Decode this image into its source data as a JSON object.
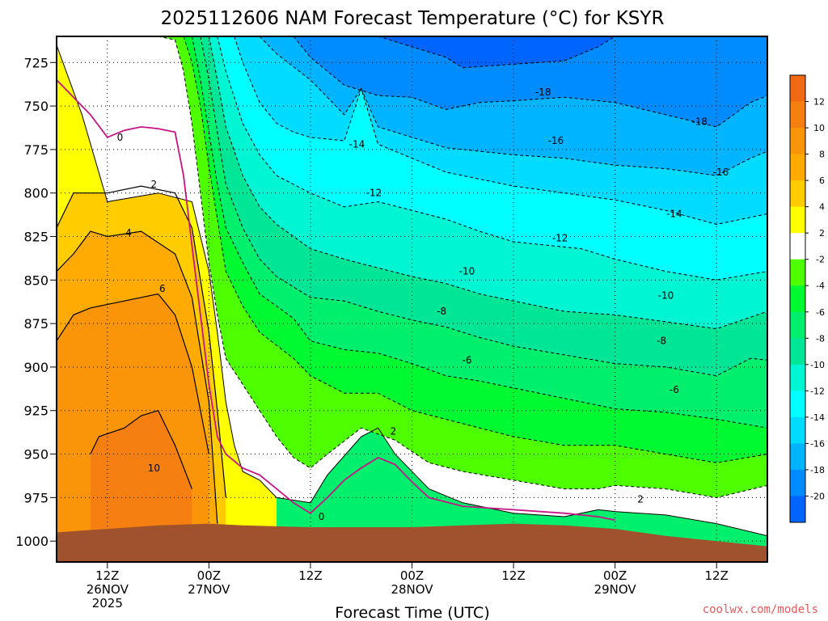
{
  "chart_data": {
    "type": "heatmap",
    "title": "2025112606 NAM Forecast Temperature (°C) for KSYR",
    "xlabel": "Forecast Time (UTC)",
    "ylabel": "",
    "y_axis": "pressure (hPa), inverted",
    "ylim": [
      710,
      1012
    ],
    "y_ticks": [
      "725",
      "750",
      "775",
      "800",
      "825",
      "850",
      "875",
      "900",
      "925",
      "950",
      "975",
      "1000"
    ],
    "xlim_hours": [
      6,
      90
    ],
    "x_ticks": [
      {
        "hour": 12,
        "line1": "12Z",
        "line2": "26NOV",
        "line3": "2025"
      },
      {
        "hour": 24,
        "line1": "00Z",
        "line2": "27NOV",
        "line3": ""
      },
      {
        "hour": 36,
        "line1": "12Z",
        "line2": "",
        "line3": ""
      },
      {
        "hour": 48,
        "line1": "00Z",
        "line2": "28NOV",
        "line3": ""
      },
      {
        "hour": 60,
        "line1": "12Z",
        "line2": "",
        "line3": ""
      },
      {
        "hour": 72,
        "line1": "00Z",
        "line2": "29NOV",
        "line3": ""
      },
      {
        "hour": 84,
        "line1": "12Z",
        "line2": "",
        "line3": ""
      }
    ],
    "grid": true,
    "legend": "colorbar-right",
    "colorbar": {
      "labels": [
        "12",
        "10",
        "8",
        "6",
        "4",
        "2",
        "-2",
        "-4",
        "-6",
        "-8",
        "-10",
        "-12",
        "-14",
        "-16",
        "-18",
        "-20"
      ],
      "bands": [
        {
          "color": "#f06a14"
        },
        {
          "color": "#f57f10"
        },
        {
          "color": "#fa950a"
        },
        {
          "color": "#ffab04"
        },
        {
          "color": "#ffcc00"
        },
        {
          "color": "#ffff00"
        },
        {
          "color": "#ffffff"
        },
        {
          "color": "#4dff00"
        },
        {
          "color": "#00fa32"
        },
        {
          "color": "#00f06e"
        },
        {
          "color": "#00e696"
        },
        {
          "color": "#00f5d2"
        },
        {
          "color": "#00ffff"
        },
        {
          "color": "#00dcff"
        },
        {
          "color": "#00b4ff"
        },
        {
          "color": "#008cff"
        },
        {
          "color": "#0064ff"
        }
      ]
    },
    "surface_pressure": [
      [
        6,
        995
      ],
      [
        12,
        993
      ],
      [
        18,
        991
      ],
      [
        24,
        990
      ],
      [
        28,
        991
      ],
      [
        36,
        992
      ],
      [
        48,
        992
      ],
      [
        54,
        991
      ],
      [
        60,
        990
      ],
      [
        66,
        991
      ],
      [
        72,
        993
      ],
      [
        78,
        997
      ],
      [
        84,
        1000
      ],
      [
        90,
        1003
      ]
    ],
    "contours": [
      {
        "temp": 2,
        "x": [
          6,
          9,
          12,
          18,
          22,
          24,
          25,
          26,
          27,
          28,
          30,
          32,
          36,
          38,
          42,
          44,
          46,
          50,
          54,
          60,
          66,
          70,
          72,
          78,
          84,
          90
        ],
        "p": [
          715,
          755,
          805,
          800,
          805,
          845,
          880,
          920,
          945,
          960,
          965,
          975,
          978,
          962,
          940,
          935,
          950,
          970,
          978,
          984,
          986,
          982,
          983,
          985,
          990,
          997
        ]
      },
      {
        "temp": -2,
        "x": [
          14,
          18,
          20,
          21,
          22,
          23,
          24,
          25,
          26,
          28,
          30,
          32,
          34,
          36,
          38,
          42,
          46,
          50,
          54,
          60,
          66,
          70,
          72,
          78,
          84,
          90
        ],
        "p": [
          710,
          710,
          712,
          730,
          760,
          800,
          840,
          870,
          895,
          910,
          925,
          940,
          952,
          958,
          950,
          935,
          942,
          955,
          960,
          965,
          970,
          970,
          968,
          970,
          975,
          968
        ]
      },
      {
        "temp": -4,
        "x": [
          21,
          22,
          23,
          24,
          25,
          26,
          28,
          30,
          34,
          36,
          40,
          44,
          48,
          52,
          56,
          60,
          66,
          72,
          78,
          84,
          90
        ],
        "p": [
          710,
          725,
          750,
          785,
          815,
          845,
          865,
          880,
          895,
          905,
          915,
          915,
          925,
          930,
          935,
          940,
          945,
          945,
          950,
          955,
          950
        ]
      },
      {
        "temp": -6,
        "x": [
          22,
          23,
          24,
          25,
          26,
          28,
          30,
          34,
          36,
          40,
          44,
          48,
          52,
          56,
          60,
          66,
          72,
          78,
          84,
          90
        ],
        "p": [
          710,
          735,
          765,
          795,
          820,
          840,
          858,
          872,
          885,
          890,
          892,
          898,
          905,
          908,
          912,
          918,
          924,
          926,
          930,
          935
        ]
      },
      {
        "temp": -8,
        "x": [
          23,
          24,
          25,
          26,
          28,
          30,
          32,
          36,
          40,
          44,
          48,
          52,
          56,
          60,
          66,
          72,
          78,
          84,
          88,
          90
        ],
        "p": [
          710,
          735,
          765,
          795,
          820,
          838,
          848,
          860,
          862,
          868,
          873,
          877,
          883,
          888,
          893,
          898,
          900,
          905,
          895,
          896
        ]
      },
      {
        "temp": -10,
        "x": [
          24,
          25,
          26,
          28,
          30,
          32,
          34,
          36,
          40,
          44,
          48,
          52,
          56,
          60,
          66,
          72,
          78,
          84,
          90
        ],
        "p": [
          710,
          735,
          762,
          790,
          808,
          818,
          825,
          832,
          838,
          843,
          848,
          852,
          858,
          862,
          868,
          870,
          874,
          878,
          868
        ]
      },
      {
        "temp": -12,
        "x": [
          25,
          26,
          28,
          30,
          32,
          36,
          40,
          44,
          48,
          52,
          56,
          60,
          64,
          68,
          72,
          78,
          84,
          90
        ],
        "p": [
          710,
          730,
          760,
          778,
          790,
          800,
          808,
          805,
          810,
          815,
          822,
          828,
          830,
          832,
          838,
          845,
          850,
          845
        ]
      },
      {
        "temp": -14,
        "x": [
          27,
          28,
          30,
          32,
          34,
          36,
          40,
          42,
          44,
          48,
          52,
          56,
          60,
          66,
          72,
          78,
          84,
          90
        ],
        "p": [
          710,
          725,
          748,
          760,
          765,
          768,
          770,
          740,
          772,
          780,
          788,
          792,
          796,
          800,
          804,
          810,
          818,
          812
        ]
      },
      {
        "temp": -16,
        "x": [
          30,
          32,
          36,
          38,
          40,
          42,
          44,
          48,
          52,
          56,
          60,
          66,
          72,
          78,
          84,
          88,
          90
        ],
        "p": [
          710,
          720,
          735,
          745,
          755,
          740,
          762,
          768,
          774,
          776,
          778,
          780,
          784,
          786,
          790,
          780,
          776
        ]
      },
      {
        "temp": -18,
        "x": [
          34,
          36,
          40,
          44,
          48,
          52,
          56,
          60,
          66,
          72,
          78,
          84,
          88,
          90
        ],
        "p": [
          710,
          722,
          738,
          744,
          745,
          752,
          748,
          747,
          745,
          748,
          755,
          762,
          748,
          744
        ]
      },
      {
        "temp": -20,
        "x": [
          44,
          48,
          52,
          54,
          60,
          66,
          70,
          72
        ],
        "p": [
          710,
          716,
          722,
          728,
          726,
          724,
          716,
          710
        ]
      }
    ],
    "contour_labels": [
      {
        "text": "0",
        "x": 13.5,
        "p": 768
      },
      {
        "text": "2",
        "x": 17.5,
        "p": 795
      },
      {
        "text": "4",
        "x": 14.5,
        "p": 823
      },
      {
        "text": "6",
        "x": 18.5,
        "p": 855
      },
      {
        "text": "10",
        "x": 17.5,
        "p": 958
      },
      {
        "text": "0",
        "x": 37.3,
        "p": 986
      },
      {
        "text": "2",
        "x": 45.8,
        "p": 937
      },
      {
        "text": "-6",
        "x": 54.5,
        "p": 896
      },
      {
        "text": "-8",
        "x": 51.5,
        "p": 868
      },
      {
        "text": "-10",
        "x": 54.5,
        "p": 845
      },
      {
        "text": "-12",
        "x": 43.5,
        "p": 800
      },
      {
        "text": "-14",
        "x": 41.5,
        "p": 772
      },
      {
        "text": "-18",
        "x": 63.5,
        "p": 742
      },
      {
        "text": "-16",
        "x": 65.0,
        "p": 770
      },
      {
        "text": "-12",
        "x": 65.5,
        "p": 826
      },
      {
        "text": "-18",
        "x": 82.0,
        "p": 759
      },
      {
        "text": "-16",
        "x": 84.5,
        "p": 788
      },
      {
        "text": "-14",
        "x": 79.0,
        "p": 812
      },
      {
        "text": "-10",
        "x": 78.0,
        "p": 859
      },
      {
        "text": "-8",
        "x": 77.5,
        "p": 885
      },
      {
        "text": "-6",
        "x": 79.0,
        "p": 913
      },
      {
        "text": "2",
        "x": 75.0,
        "p": 976
      }
    ]
  },
  "footer": {
    "source": "coolwx.com/models"
  }
}
